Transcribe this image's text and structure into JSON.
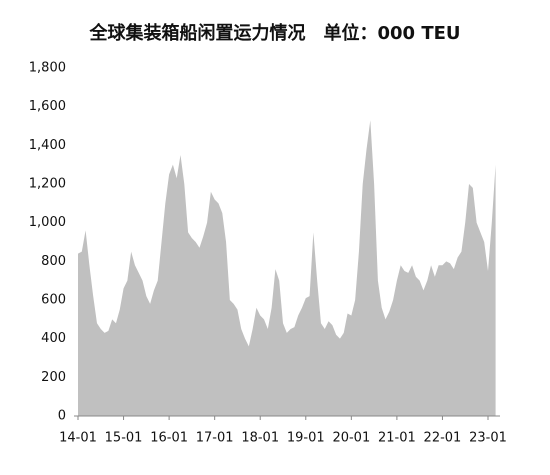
{
  "chart_data": {
    "type": "area",
    "title": "全球集装箱船闲置运力情况　单位：000 TEU",
    "categories": [
      "14-01",
      null,
      null,
      null,
      null,
      null,
      null,
      null,
      null,
      null,
      null,
      null,
      "15-01",
      null,
      null,
      null,
      null,
      null,
      null,
      null,
      null,
      null,
      null,
      null,
      "16-01",
      null,
      null,
      null,
      null,
      null,
      null,
      null,
      null,
      null,
      null,
      null,
      "17-01",
      null,
      null,
      null,
      null,
      null,
      null,
      null,
      null,
      null,
      null,
      null,
      "18-01",
      null,
      null,
      null,
      null,
      null,
      null,
      null,
      null,
      null,
      null,
      null,
      "19-01",
      null,
      null,
      null,
      null,
      null,
      null,
      null,
      null,
      null,
      null,
      null,
      "20-01",
      null,
      null,
      null,
      null,
      null,
      null,
      null,
      null,
      null,
      null,
      null,
      "21-01",
      null,
      null,
      null,
      null,
      null,
      null,
      null,
      null,
      null,
      null,
      null,
      "22-01",
      null,
      null,
      null,
      null,
      null,
      null,
      null,
      null,
      null,
      null,
      null,
      "23-01",
      null,
      null
    ],
    "values": [
      840,
      850,
      960,
      780,
      620,
      480,
      450,
      430,
      440,
      500,
      480,
      550,
      660,
      700,
      850,
      780,
      740,
      700,
      620,
      580,
      650,
      700,
      900,
      1100,
      1250,
      1300,
      1230,
      1350,
      1200,
      950,
      920,
      900,
      870,
      930,
      1000,
      1160,
      1120,
      1100,
      1050,
      900,
      600,
      580,
      550,
      450,
      400,
      360,
      450,
      560,
      520,
      500,
      450,
      560,
      760,
      700,
      480,
      430,
      450,
      460,
      520,
      560,
      610,
      620,
      950,
      700,
      480,
      450,
      490,
      470,
      420,
      400,
      430,
      530,
      520,
      600,
      850,
      1200,
      1380,
      1530,
      1200,
      700,
      560,
      500,
      540,
      600,
      700,
      780,
      750,
      740,
      780,
      720,
      700,
      650,
      700,
      780,
      720,
      780,
      780,
      800,
      790,
      760,
      820,
      850,
      1000,
      1200,
      1180,
      1000,
      950,
      900,
      750,
      1000,
      1300
    ],
    "color": "#c0c0c0",
    "ylim": [
      0,
      1800
    ],
    "yticks": [
      0,
      200,
      400,
      600,
      800,
      {
        "value": 1000,
        "label": "1,000"
      },
      {
        "value": 1200,
        "label": "1,200"
      },
      {
        "value": 1400,
        "label": "1,400"
      },
      {
        "value": 1600,
        "label": "1,600"
      },
      {
        "value": 1800,
        "label": "1,800"
      }
    ],
    "grid": false
  }
}
